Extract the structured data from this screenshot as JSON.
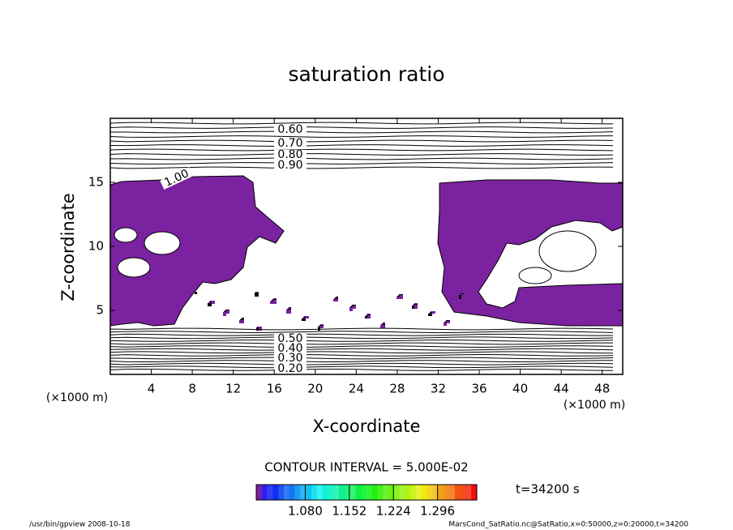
{
  "chart_data": {
    "type": "contour",
    "title": "saturation ratio",
    "x_label": "X-coordinate",
    "y_label": "Z-coordinate",
    "x_unit": "(×1000 m)",
    "y_unit": "(×1000 m)",
    "xlim": [
      0,
      50
    ],
    "xticks": [
      4,
      8,
      12,
      16,
      20,
      24,
      28,
      32,
      36,
      40,
      44,
      48
    ],
    "ylim": [
      0,
      20
    ],
    "yticks": [
      5,
      10,
      15
    ],
    "fill_color": "#7b22a0",
    "contour_labels": [
      {
        "value": 0.6,
        "label": "0.60"
      },
      {
        "value": 0.7,
        "label": "0.70"
      },
      {
        "value": 0.8,
        "label": "0.80"
      },
      {
        "value": 0.9,
        "label": "0.90"
      },
      {
        "value": 1.0,
        "label": "1.00"
      },
      {
        "value": 0.5,
        "label": "0.50"
      },
      {
        "value": 0.4,
        "label": "0.40"
      },
      {
        "value": 0.3,
        "label": "0.30"
      },
      {
        "value": 0.2,
        "label": "0.20"
      }
    ],
    "contour_interval": "CONTOUR INTERVAL = 5.000E-02",
    "colorbar_lim": [
      1.0,
      1.36
    ],
    "colorbar_ticks": [
      {
        "value": 1.08,
        "label": "1.080"
      },
      {
        "value": 1.152,
        "label": "1.152"
      },
      {
        "value": 1.224,
        "label": "1.224"
      },
      {
        "value": 1.296,
        "label": "1.296"
      }
    ],
    "time_label": "t=34200 s",
    "footer_left": "/usr/bin/gpview   2008-10-18",
    "footer_right": "MarsCond_SatRatio.nc@SatRatio,x=0:50000,z=0:20000,t=34200"
  }
}
